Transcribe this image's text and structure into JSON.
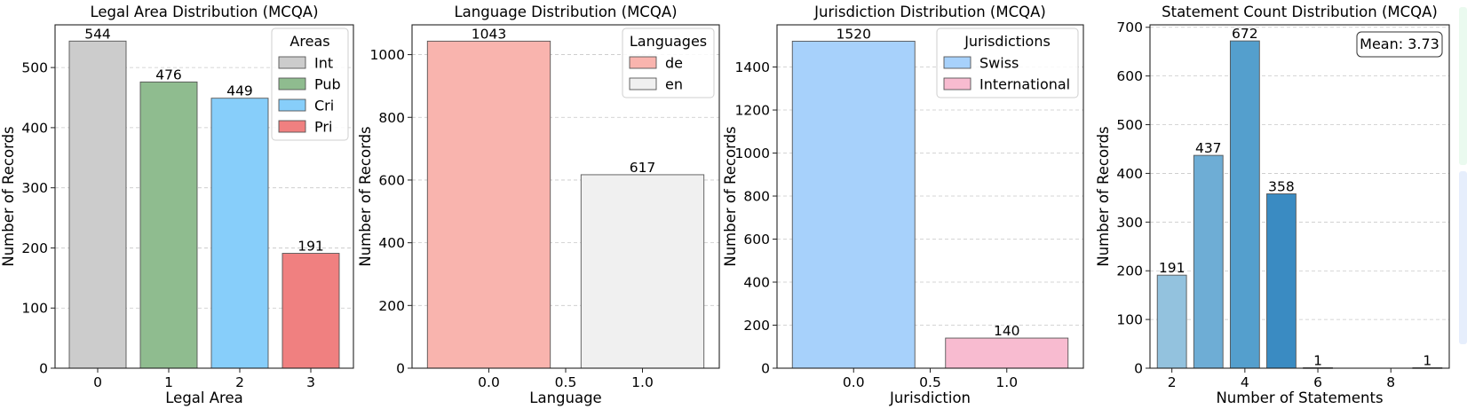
{
  "chart_data": [
    {
      "type": "bar",
      "title": "Legal Area Distribution (MCQA)",
      "xlabel": "Legal Area",
      "ylabel": "Number of Records",
      "categories": [
        "0",
        "1",
        "2",
        "3"
      ],
      "values": [
        544,
        476,
        449,
        191
      ],
      "data_labels": [
        "544",
        "476",
        "449",
        "191"
      ],
      "colors": [
        "#cccccc",
        "#8fbc8f",
        "#87cefa",
        "#f08080"
      ],
      "ylim": [
        0,
        571
      ],
      "yticks": [
        0,
        100,
        200,
        300,
        400,
        500
      ],
      "ytick_labels": [
        "0",
        "100",
        "200",
        "300",
        "400",
        "500"
      ],
      "grid": true,
      "legend": {
        "title": "Areas",
        "placement": "top-right",
        "entries": [
          "Int",
          "Pub",
          "Cri",
          "Pri"
        ],
        "colors": [
          "#cccccc",
          "#8fbc8f",
          "#87cefa",
          "#f08080"
        ]
      }
    },
    {
      "type": "bar",
      "title": "Language Distribution (MCQA)",
      "xlabel": "Language",
      "ylabel": "Number of Records",
      "x": [
        0,
        1
      ],
      "bar_width": 0.8,
      "values": [
        1043,
        617
      ],
      "data_labels": [
        "1043",
        "617"
      ],
      "colors": [
        "#f9b4ae",
        "#f0f0f0"
      ],
      "xlim": [
        -0.5,
        1.5
      ],
      "xticks": [
        0.0,
        0.5,
        1.0
      ],
      "xtick_labels": [
        "0.0",
        "0.5",
        "1.0"
      ],
      "ylim": [
        0,
        1095
      ],
      "yticks": [
        0,
        200,
        400,
        600,
        800,
        1000
      ],
      "ytick_labels": [
        "0",
        "200",
        "400",
        "600",
        "800",
        "1000"
      ],
      "grid": true,
      "legend": {
        "title": "Languages",
        "placement": "top-right",
        "entries": [
          "de",
          "en"
        ],
        "colors": [
          "#f9b4ae",
          "#f0f0f0"
        ]
      }
    },
    {
      "type": "bar",
      "title": "Jurisdiction Distribution (MCQA)",
      "xlabel": "Jurisdiction",
      "ylabel": "Number of Records",
      "x": [
        0,
        1
      ],
      "bar_width": 0.8,
      "values": [
        1520,
        140
      ],
      "data_labels": [
        "1520",
        "140"
      ],
      "colors": [
        "#a7d1fb",
        "#f8bbd0"
      ],
      "xlim": [
        -0.5,
        1.5
      ],
      "xticks": [
        0.0,
        0.5,
        1.0
      ],
      "xtick_labels": [
        "0.0",
        "0.5",
        "1.0"
      ],
      "ylim": [
        0,
        1596
      ],
      "yticks": [
        0,
        200,
        400,
        600,
        800,
        1000,
        1200,
        1400
      ],
      "ytick_labels": [
        "0",
        "200",
        "400",
        "600",
        "800",
        "1000",
        "1200",
        "1400"
      ],
      "grid": true,
      "legend": {
        "title": "Jurisdictions",
        "placement": "top-right",
        "entries": [
          "Swiss",
          "International"
        ],
        "colors": [
          "#a7d1fb",
          "#f8bbd0"
        ]
      }
    },
    {
      "type": "bar",
      "title": "Statement Count Distribution (MCQA)",
      "xlabel": "Number of Statements",
      "ylabel": "Number of Records",
      "x": [
        2,
        3,
        4,
        5,
        6,
        9
      ],
      "bar_width": 0.8,
      "values": [
        191,
        437,
        672,
        358,
        1,
        1
      ],
      "data_labels": [
        "191",
        "437",
        "672",
        "358",
        "1",
        "1"
      ],
      "colors": [
        "#93c2de",
        "#6eadd5",
        "#549fcd",
        "#3a8bc2",
        "#2a7ab8",
        "#2071b0"
      ],
      "xlim": [
        1.4,
        9.6
      ],
      "xticks": [
        2,
        4,
        6,
        8
      ],
      "xtick_labels": [
        "2",
        "4",
        "6",
        "8"
      ],
      "ylim": [
        0,
        705
      ],
      "yticks": [
        0,
        100,
        200,
        300,
        400,
        500,
        600,
        700
      ],
      "ytick_labels": [
        "0",
        "100",
        "200",
        "300",
        "400",
        "500",
        "600",
        "700"
      ],
      "grid": true,
      "annotation": "Mean: 3.73"
    }
  ],
  "colors": {
    "side_strip_top": "#eafaef",
    "side_strip_bottom": "#e6eefc"
  }
}
